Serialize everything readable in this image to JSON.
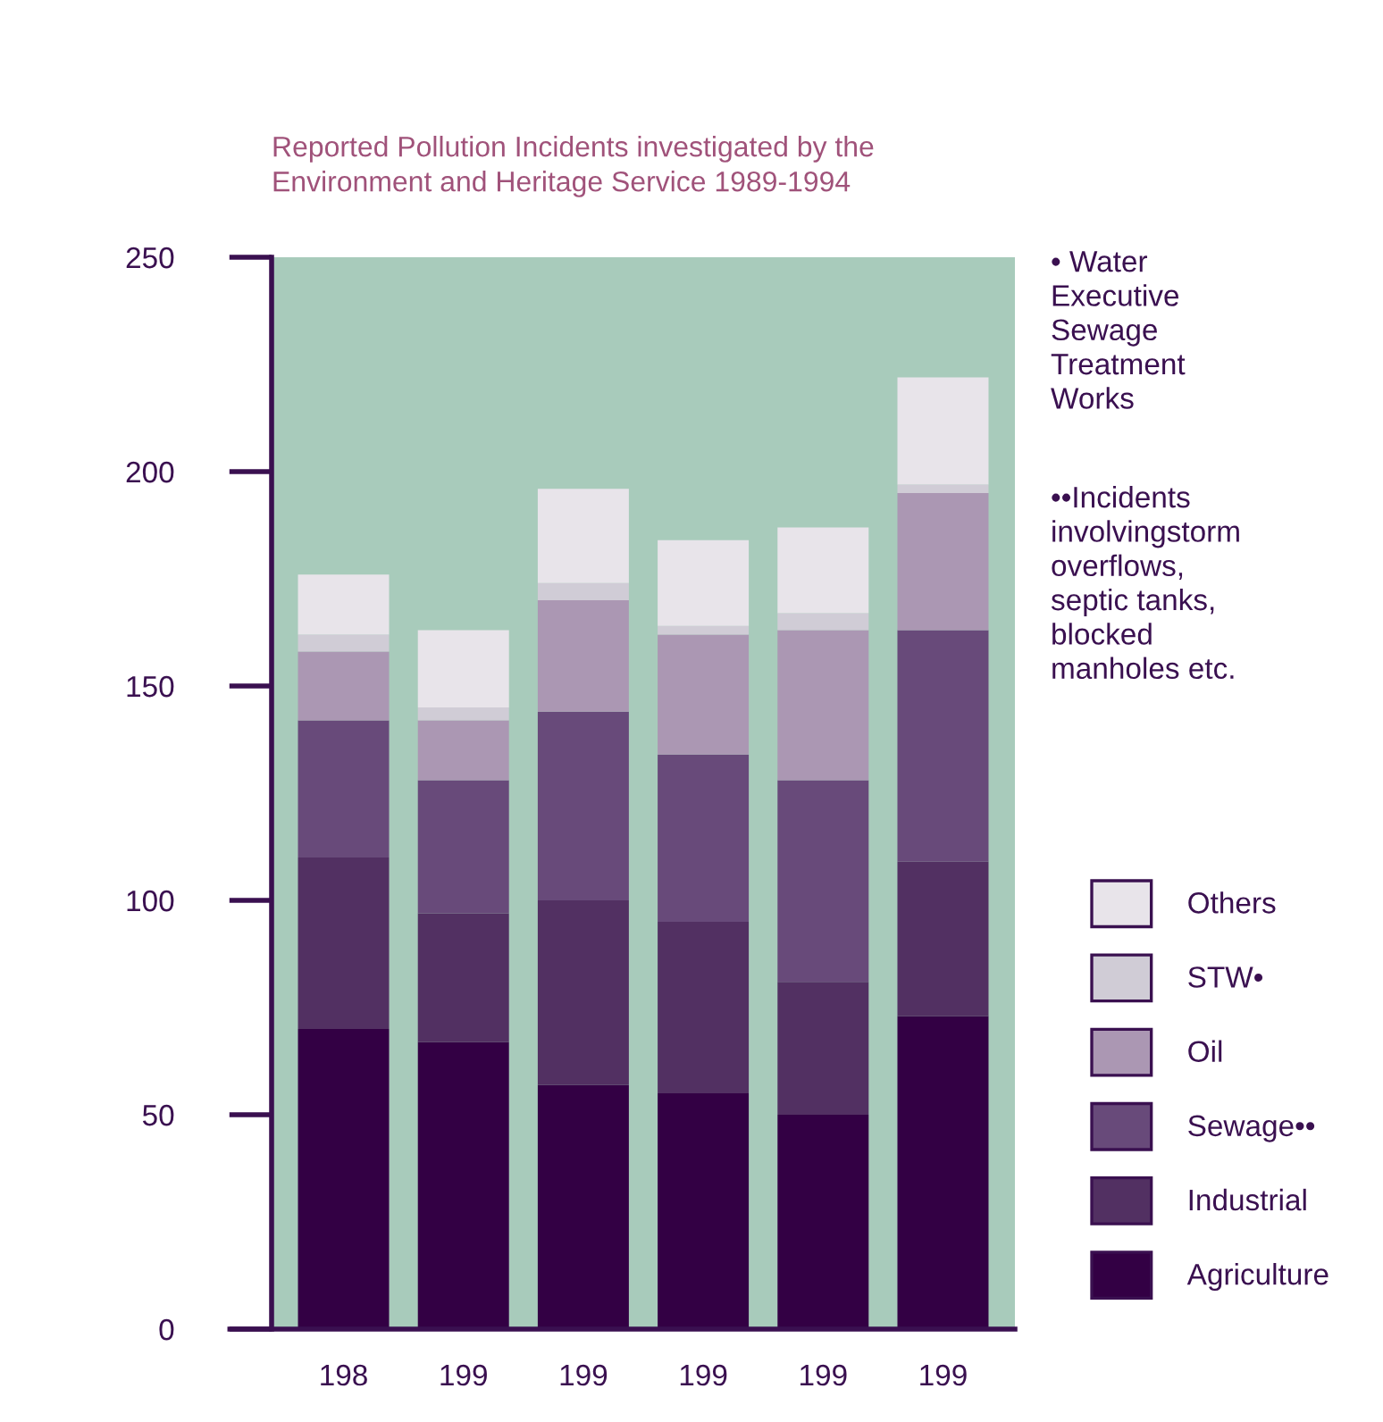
{
  "chart_data": {
    "type": "bar",
    "stacked": true,
    "title": "Reported Pollution Incidents investigated by the\nEnvironment and Heritage Service 1989-1994",
    "categories": [
      "198",
      "199",
      "199",
      "199",
      "199",
      "199"
    ],
    "series": [
      {
        "name": "Agriculture",
        "color": "#330044",
        "values": [
          70,
          67,
          57,
          55,
          50,
          73
        ]
      },
      {
        "name": "Industrial",
        "color": "#523062",
        "values": [
          40,
          30,
          43,
          40,
          31,
          36
        ]
      },
      {
        "name": "Sewage••",
        "color": "#684a7a",
        "values": [
          32,
          31,
          44,
          39,
          47,
          54
        ]
      },
      {
        "name": "Oil",
        "color": "#ab97b3",
        "values": [
          16,
          14,
          26,
          28,
          35,
          32
        ]
      },
      {
        "name": "STW•",
        "color": "#d0ccd6",
        "values": [
          4,
          3,
          4,
          2,
          4,
          2
        ]
      },
      {
        "name": "Others",
        "color": "#e8e4ea",
        "values": [
          14,
          18,
          22,
          20,
          20,
          25
        ]
      }
    ],
    "ylim": [
      0,
      250
    ],
    "yticks": [
      0,
      50,
      100,
      150,
      200,
      250
    ],
    "grid": false,
    "legend": "right",
    "annotations": [
      "• Water\nExecutive\nSewage\nTreatment\nWorks",
      "••Incidents\ninvolvingstorm\noverflows,\nseptic tanks,\nblocked\nmanholes etc."
    ]
  }
}
